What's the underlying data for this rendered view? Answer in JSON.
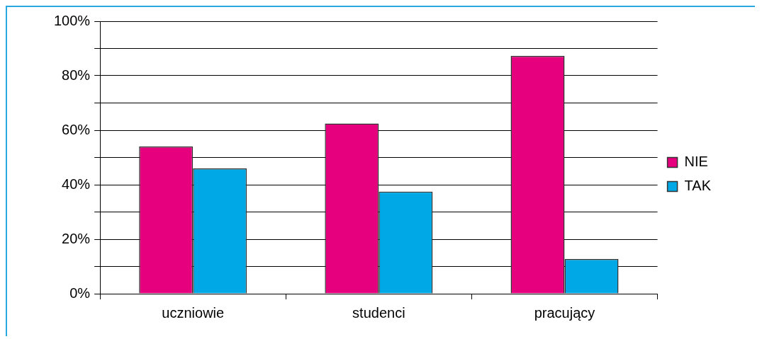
{
  "chart_data": {
    "type": "bar",
    "categories": [
      "uczniowie",
      "studenci",
      "pracujący"
    ],
    "series": [
      {
        "name": "NIE",
        "color": "#e6007e",
        "values": [
          54,
          62.5,
          87.3
        ]
      },
      {
        "name": "TAK",
        "color": "#00a9e6",
        "values": [
          46,
          37.5,
          12.7
        ]
      }
    ],
    "ylim": [
      0,
      100
    ],
    "yticks": [
      {
        "value": 0,
        "label": "0%"
      },
      {
        "value": 10,
        "label": null
      },
      {
        "value": 20,
        "label": "20%"
      },
      {
        "value": 30,
        "label": null
      },
      {
        "value": 40,
        "label": "40%"
      },
      {
        "value": 50,
        "label": null
      },
      {
        "value": 60,
        "label": "60%"
      },
      {
        "value": 70,
        "label": null
      },
      {
        "value": 80,
        "label": "80%"
      },
      {
        "value": 90,
        "label": null
      },
      {
        "value": 100,
        "label": "100%"
      }
    ],
    "grid": "y",
    "legend": "right"
  }
}
